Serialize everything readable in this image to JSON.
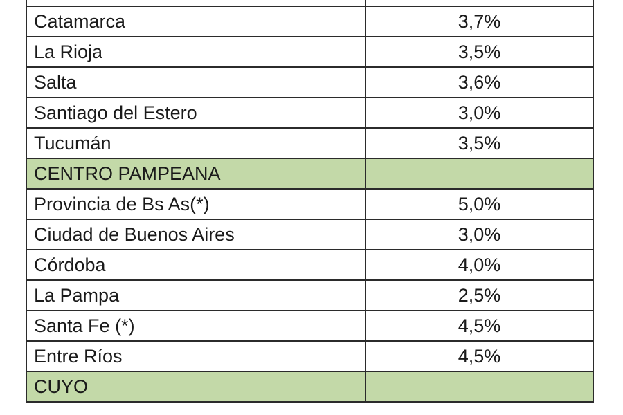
{
  "table": {
    "rows": [
      {
        "type": "partial",
        "name": "",
        "rate": ""
      },
      {
        "type": "province",
        "name": "Catamarca",
        "rate": "3,7%"
      },
      {
        "type": "province",
        "name": "La Rioja",
        "rate": "3,5%"
      },
      {
        "type": "province",
        "name": "Salta",
        "rate": "3,6%"
      },
      {
        "type": "province",
        "name": "Santiago del Estero",
        "rate": "3,0%"
      },
      {
        "type": "province",
        "name": "Tucumán",
        "rate": "3,5%"
      },
      {
        "type": "region",
        "name": "CENTRO PAMPEANA",
        "rate": ""
      },
      {
        "type": "province",
        "name": "Provincia de Bs As(*)",
        "rate": "5,0%"
      },
      {
        "type": "province",
        "name": "Ciudad de Buenos Aires",
        "rate": "3,0%"
      },
      {
        "type": "province",
        "name": "Córdoba",
        "rate": "4,0%"
      },
      {
        "type": "province",
        "name": "La Pampa",
        "rate": "2,5%"
      },
      {
        "type": "province",
        "name": "Santa Fe (*)",
        "rate": "4,5%"
      },
      {
        "type": "province",
        "name": "Entre Ríos",
        "rate": "4,5%"
      },
      {
        "type": "region",
        "name": "CUYO",
        "rate": ""
      }
    ],
    "colors": {
      "region_fill": "#c3d9a8",
      "border": "#2b2b2b",
      "text": "#1a1a1a"
    }
  }
}
